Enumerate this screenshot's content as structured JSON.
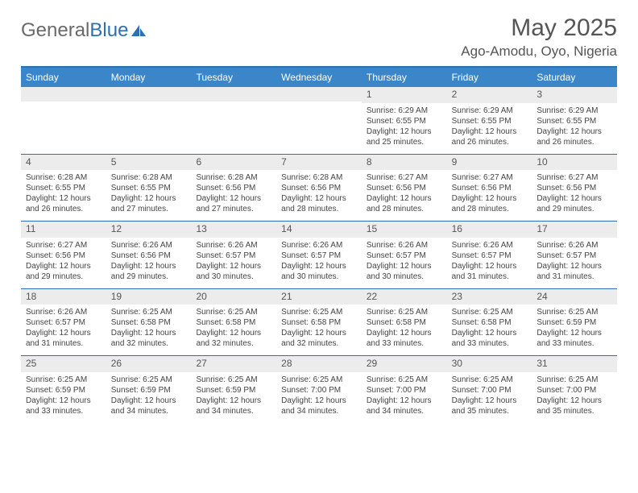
{
  "brand": {
    "part1": "General",
    "part2": "Blue"
  },
  "title": "May 2025",
  "location": "Ago-Amodu, Oyo, Nigeria",
  "colors": {
    "header_bar": "#3b86c8",
    "rule": "#2c6fb3",
    "daynum_bg": "#ececec",
    "text": "#444444",
    "title_text": "#555555"
  },
  "day_headers": [
    "Sunday",
    "Monday",
    "Tuesday",
    "Wednesday",
    "Thursday",
    "Friday",
    "Saturday"
  ],
  "weeks": [
    [
      null,
      null,
      null,
      null,
      {
        "n": "1",
        "sr": "6:29 AM",
        "ss": "6:55 PM",
        "dl": "12 hours and 25 minutes."
      },
      {
        "n": "2",
        "sr": "6:29 AM",
        "ss": "6:55 PM",
        "dl": "12 hours and 26 minutes."
      },
      {
        "n": "3",
        "sr": "6:29 AM",
        "ss": "6:55 PM",
        "dl": "12 hours and 26 minutes."
      }
    ],
    [
      {
        "n": "4",
        "sr": "6:28 AM",
        "ss": "6:55 PM",
        "dl": "12 hours and 26 minutes."
      },
      {
        "n": "5",
        "sr": "6:28 AM",
        "ss": "6:55 PM",
        "dl": "12 hours and 27 minutes."
      },
      {
        "n": "6",
        "sr": "6:28 AM",
        "ss": "6:56 PM",
        "dl": "12 hours and 27 minutes."
      },
      {
        "n": "7",
        "sr": "6:28 AM",
        "ss": "6:56 PM",
        "dl": "12 hours and 28 minutes."
      },
      {
        "n": "8",
        "sr": "6:27 AM",
        "ss": "6:56 PM",
        "dl": "12 hours and 28 minutes."
      },
      {
        "n": "9",
        "sr": "6:27 AM",
        "ss": "6:56 PM",
        "dl": "12 hours and 28 minutes."
      },
      {
        "n": "10",
        "sr": "6:27 AM",
        "ss": "6:56 PM",
        "dl": "12 hours and 29 minutes."
      }
    ],
    [
      {
        "n": "11",
        "sr": "6:27 AM",
        "ss": "6:56 PM",
        "dl": "12 hours and 29 minutes."
      },
      {
        "n": "12",
        "sr": "6:26 AM",
        "ss": "6:56 PM",
        "dl": "12 hours and 29 minutes."
      },
      {
        "n": "13",
        "sr": "6:26 AM",
        "ss": "6:57 PM",
        "dl": "12 hours and 30 minutes."
      },
      {
        "n": "14",
        "sr": "6:26 AM",
        "ss": "6:57 PM",
        "dl": "12 hours and 30 minutes."
      },
      {
        "n": "15",
        "sr": "6:26 AM",
        "ss": "6:57 PM",
        "dl": "12 hours and 30 minutes."
      },
      {
        "n": "16",
        "sr": "6:26 AM",
        "ss": "6:57 PM",
        "dl": "12 hours and 31 minutes."
      },
      {
        "n": "17",
        "sr": "6:26 AM",
        "ss": "6:57 PM",
        "dl": "12 hours and 31 minutes."
      }
    ],
    [
      {
        "n": "18",
        "sr": "6:26 AM",
        "ss": "6:57 PM",
        "dl": "12 hours and 31 minutes."
      },
      {
        "n": "19",
        "sr": "6:25 AM",
        "ss": "6:58 PM",
        "dl": "12 hours and 32 minutes."
      },
      {
        "n": "20",
        "sr": "6:25 AM",
        "ss": "6:58 PM",
        "dl": "12 hours and 32 minutes."
      },
      {
        "n": "21",
        "sr": "6:25 AM",
        "ss": "6:58 PM",
        "dl": "12 hours and 32 minutes."
      },
      {
        "n": "22",
        "sr": "6:25 AM",
        "ss": "6:58 PM",
        "dl": "12 hours and 33 minutes."
      },
      {
        "n": "23",
        "sr": "6:25 AM",
        "ss": "6:58 PM",
        "dl": "12 hours and 33 minutes."
      },
      {
        "n": "24",
        "sr": "6:25 AM",
        "ss": "6:59 PM",
        "dl": "12 hours and 33 minutes."
      }
    ],
    [
      {
        "n": "25",
        "sr": "6:25 AM",
        "ss": "6:59 PM",
        "dl": "12 hours and 33 minutes."
      },
      {
        "n": "26",
        "sr": "6:25 AM",
        "ss": "6:59 PM",
        "dl": "12 hours and 34 minutes."
      },
      {
        "n": "27",
        "sr": "6:25 AM",
        "ss": "6:59 PM",
        "dl": "12 hours and 34 minutes."
      },
      {
        "n": "28",
        "sr": "6:25 AM",
        "ss": "7:00 PM",
        "dl": "12 hours and 34 minutes."
      },
      {
        "n": "29",
        "sr": "6:25 AM",
        "ss": "7:00 PM",
        "dl": "12 hours and 34 minutes."
      },
      {
        "n": "30",
        "sr": "6:25 AM",
        "ss": "7:00 PM",
        "dl": "12 hours and 35 minutes."
      },
      {
        "n": "31",
        "sr": "6:25 AM",
        "ss": "7:00 PM",
        "dl": "12 hours and 35 minutes."
      }
    ]
  ],
  "labels": {
    "sunrise": "Sunrise:",
    "sunset": "Sunset:",
    "daylight": "Daylight:"
  }
}
